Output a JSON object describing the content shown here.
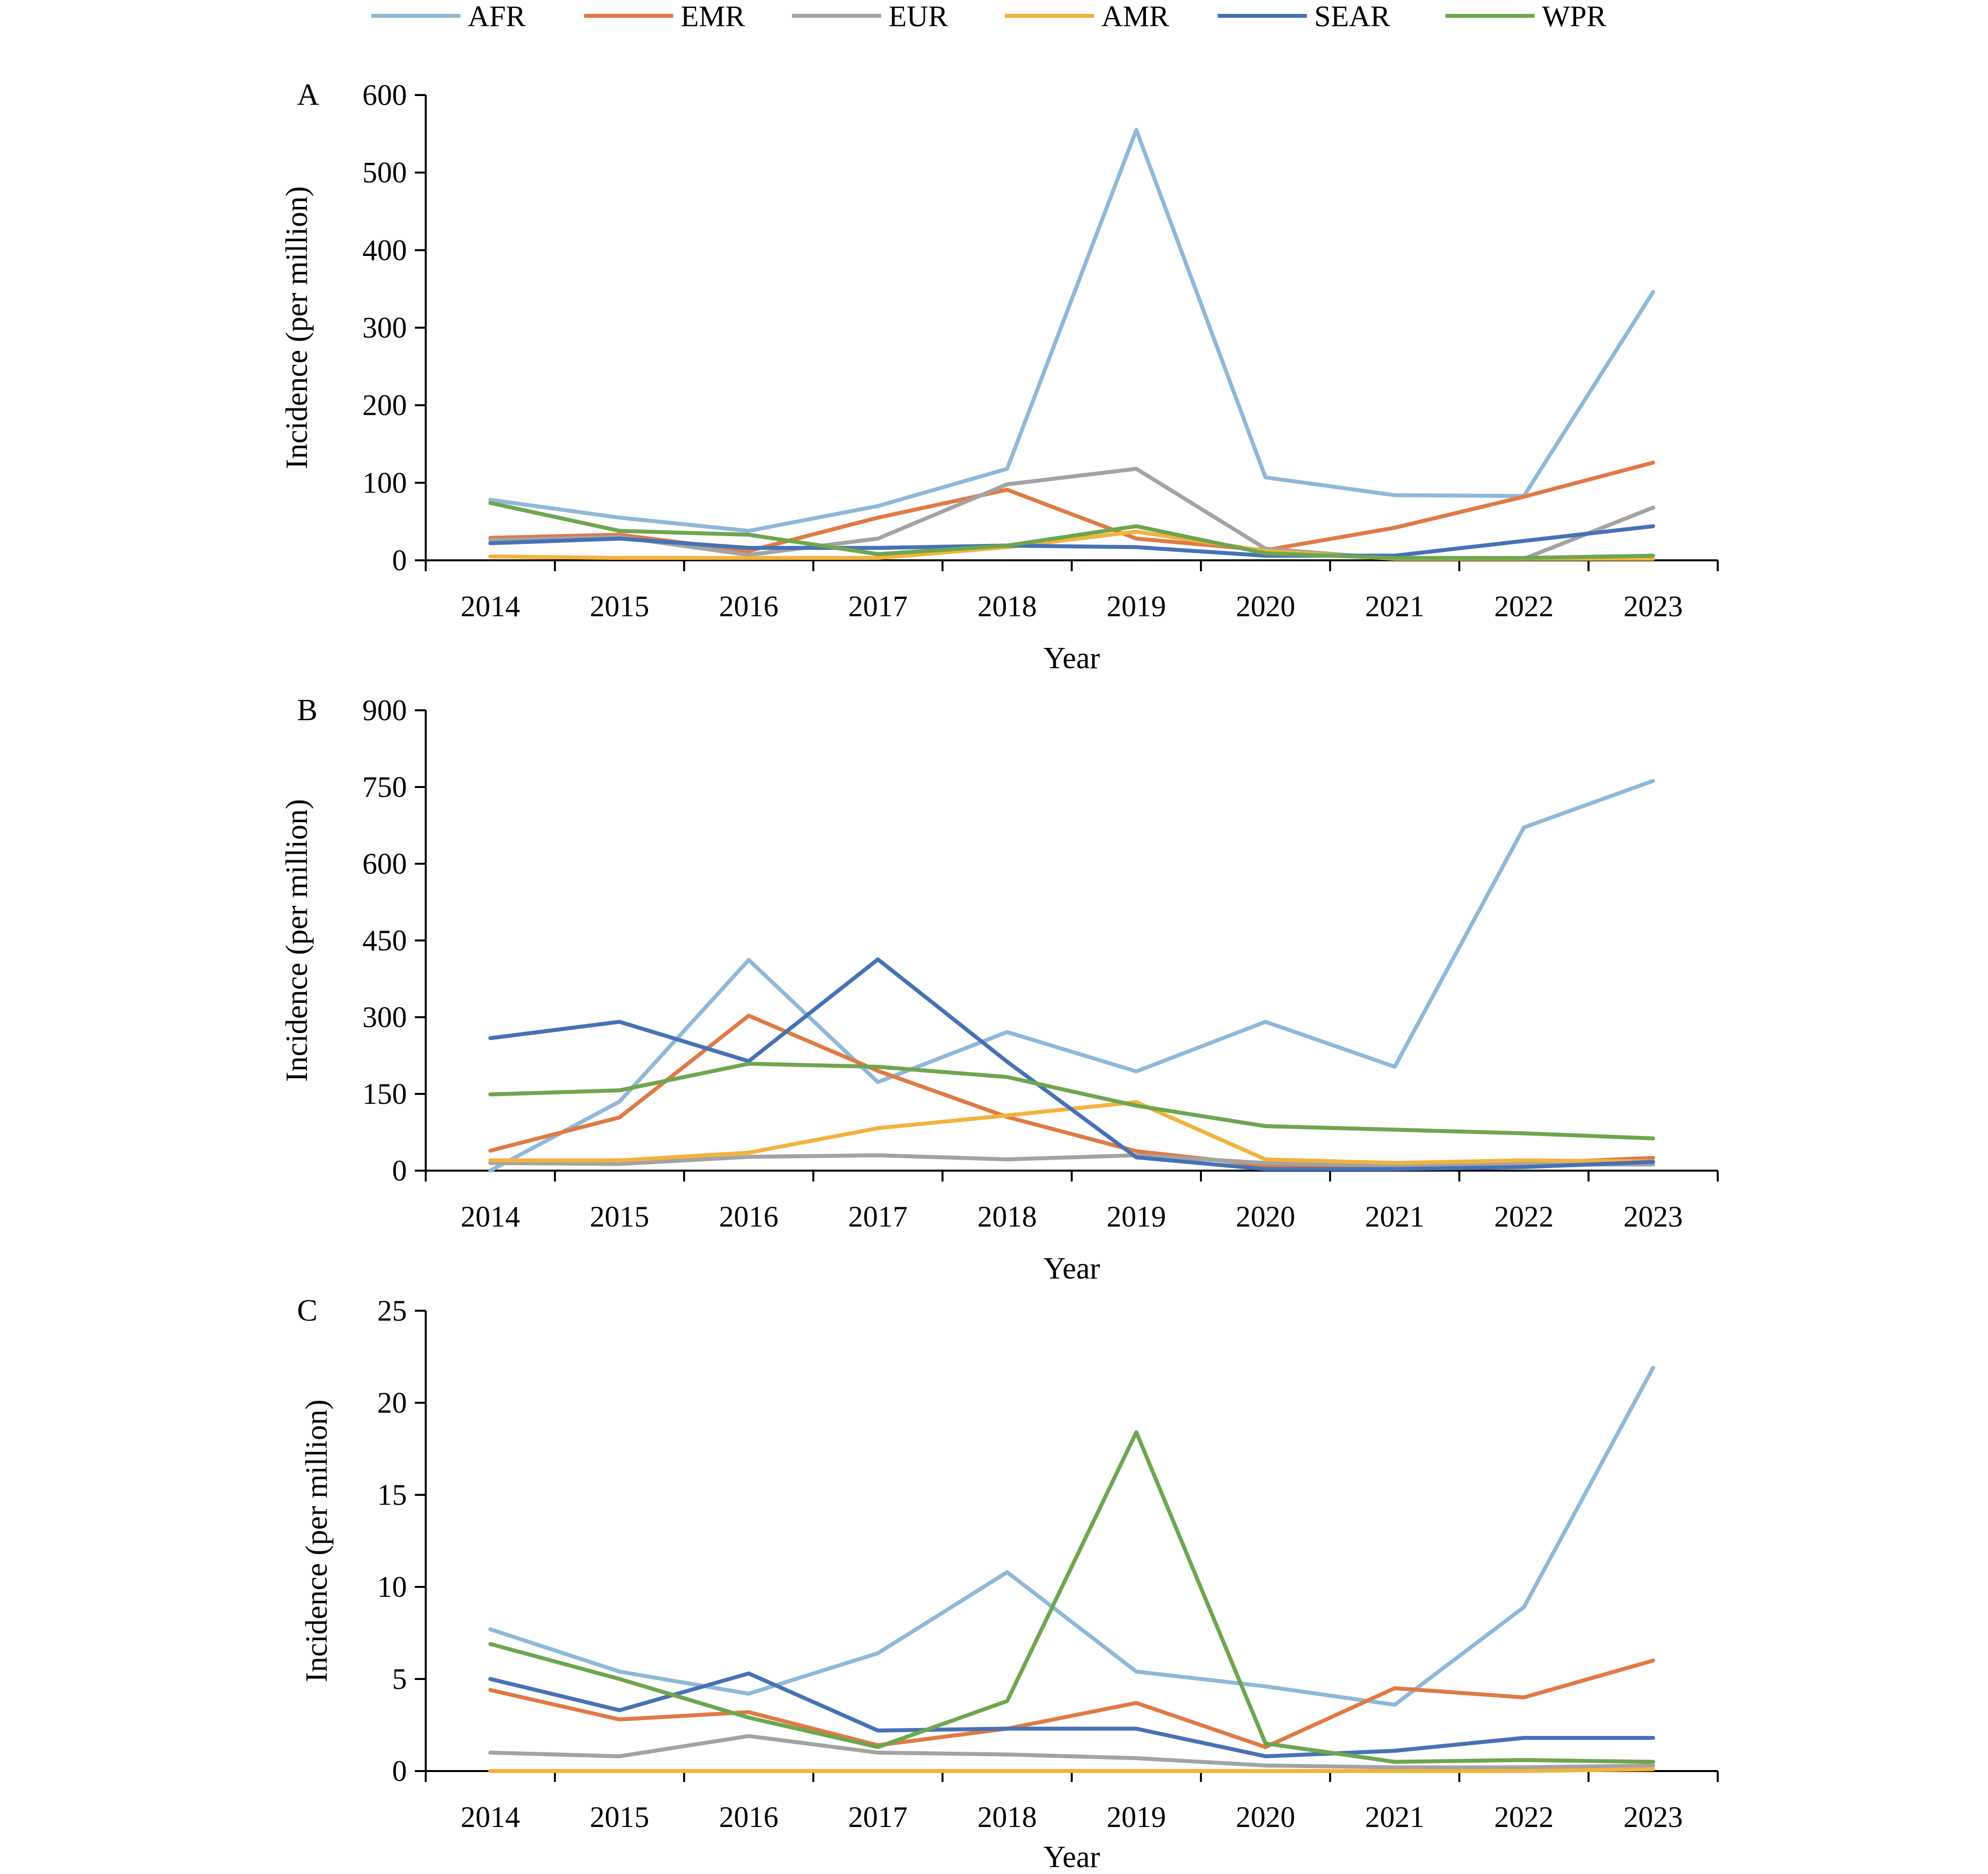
{
  "colors": {
    "AFR": "#8FB8D8",
    "EMR": "#E07A45",
    "EUR": "#A3A3A3",
    "AMR": "#F2B33D",
    "SEAR": "#4672B5",
    "WPR": "#6EA64F"
  },
  "legend": {
    "position": "top-center",
    "items": [
      "AFR",
      "EMR",
      "EUR",
      "AMR",
      "SEAR",
      "WPR"
    ]
  },
  "chart_data": [
    {
      "type": "line",
      "panel_label": "A",
      "xlabel": "Year",
      "ylabel": "Incidence (per million)",
      "ylim": [
        0,
        600
      ],
      "yticks": [
        0,
        100,
        200,
        300,
        400,
        500,
        600
      ],
      "grid": false,
      "categories": [
        "2014",
        "2015",
        "2016",
        "2017",
        "2018",
        "2019",
        "2020",
        "2021",
        "2022",
        "2023"
      ],
      "series": [
        {
          "name": "AFR",
          "values": [
            78,
            55,
            38,
            70,
            118,
            555,
            107,
            84,
            83,
            346
          ]
        },
        {
          "name": "EMR",
          "values": [
            29,
            33,
            12,
            55,
            91,
            28,
            13,
            42,
            82,
            126
          ]
        },
        {
          "name": "EUR",
          "values": [
            26,
            30,
            7,
            28,
            98,
            118,
            15,
            2,
            2,
            68
          ]
        },
        {
          "name": "AMR",
          "values": [
            5,
            3,
            3,
            3,
            17,
            37,
            12,
            2,
            2,
            2
          ]
        },
        {
          "name": "SEAR",
          "values": [
            22,
            28,
            16,
            16,
            19,
            17,
            6,
            6,
            25,
            44
          ]
        },
        {
          "name": "WPR",
          "values": [
            74,
            38,
            33,
            8,
            19,
            44,
            9,
            3,
            3,
            6
          ]
        }
      ]
    },
    {
      "type": "line",
      "panel_label": "B",
      "xlabel": "Year",
      "ylabel": "Incidence (per million)",
      "ylim": [
        0,
        900
      ],
      "yticks": [
        0,
        150,
        300,
        450,
        600,
        750,
        900
      ],
      "grid": false,
      "categories": [
        "2014",
        "2015",
        "2016",
        "2017",
        "2018",
        "2019",
        "2020",
        "2021",
        "2022",
        "2023"
      ],
      "series": [
        {
          "name": "AFR",
          "values": [
            0,
            135,
            412,
            173,
            271,
            194,
            291,
            203,
            671,
            762
          ]
        },
        {
          "name": "EMR",
          "values": [
            39,
            104,
            303,
            195,
            105,
            38,
            10,
            10,
            14,
            25
          ]
        },
        {
          "name": "EUR",
          "values": [
            15,
            13,
            27,
            30,
            22,
            30,
            15,
            10,
            12,
            12
          ]
        },
        {
          "name": "AMR",
          "values": [
            20,
            20,
            35,
            83,
            108,
            134,
            22,
            15,
            20,
            18
          ]
        },
        {
          "name": "SEAR",
          "values": [
            259,
            291,
            214,
            413,
            213,
            26,
            3,
            3,
            7,
            17
          ]
        },
        {
          "name": "WPR",
          "values": [
            149,
            157,
            209,
            203,
            183,
            127,
            87,
            80,
            73,
            63
          ]
        }
      ]
    },
    {
      "type": "line",
      "panel_label": "C",
      "xlabel": "Year",
      "ylabel": "Incidence (per million)",
      "ylim": [
        0,
        25
      ],
      "yticks": [
        0,
        5,
        10,
        15,
        20,
        25
      ],
      "grid": false,
      "categories": [
        "2014",
        "2015",
        "2016",
        "2017",
        "2018",
        "2019",
        "2020",
        "2021",
        "2022",
        "2023"
      ],
      "series": [
        {
          "name": "AFR",
          "values": [
            7.7,
            5.4,
            4.2,
            6.4,
            10.8,
            5.4,
            4.6,
            3.6,
            8.9,
            21.9
          ]
        },
        {
          "name": "EMR",
          "values": [
            4.4,
            2.8,
            3.2,
            1.4,
            2.3,
            3.7,
            1.3,
            4.5,
            4.0,
            6.0
          ]
        },
        {
          "name": "EUR",
          "values": [
            1.0,
            0.8,
            1.9,
            1.0,
            0.9,
            0.7,
            0.3,
            0.2,
            0.2,
            0.3
          ]
        },
        {
          "name": "AMR",
          "values": [
            0.0,
            0.0,
            0.0,
            0.0,
            0.0,
            0.0,
            0.0,
            0.0,
            0.0,
            0.1
          ]
        },
        {
          "name": "SEAR",
          "values": [
            5.0,
            3.3,
            5.3,
            2.2,
            2.3,
            2.3,
            0.8,
            1.1,
            1.8,
            1.8
          ]
        },
        {
          "name": "WPR",
          "values": [
            6.9,
            5.0,
            2.9,
            1.3,
            3.8,
            18.4,
            1.5,
            0.5,
            0.6,
            0.5
          ]
        }
      ]
    }
  ]
}
